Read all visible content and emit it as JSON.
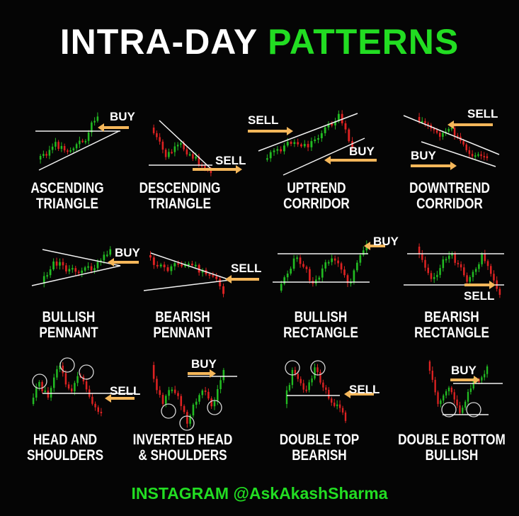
{
  "title": {
    "part1": "INTRA-DAY",
    "part2": "PATTERNS"
  },
  "colors": {
    "accent": "#22dd22",
    "bull": "#22bb22",
    "bear": "#dd2222",
    "arrow": "#f5b75a",
    "text": "#ffffff"
  },
  "patterns": [
    {
      "line1": "ASCENDING",
      "line2": "TRIANGLE",
      "tags": [
        "BUY"
      ]
    },
    {
      "line1": "DESCENDING",
      "line2": "TRIANGLE",
      "tags": [
        "SELL"
      ]
    },
    {
      "line1": "UPTREND",
      "line2": "CORRIDOR",
      "tags": [
        "SELL",
        "BUY"
      ]
    },
    {
      "line1": "DOWNTREND",
      "line2": "CORRIDOR",
      "tags": [
        "SELL",
        "BUY"
      ]
    },
    {
      "line1": "BULLISH",
      "line2": "PENNANT",
      "tags": [
        "BUY"
      ]
    },
    {
      "line1": "BEARISH",
      "line2": "PENNANT",
      "tags": [
        "SELL"
      ]
    },
    {
      "line1": "BULLISH",
      "line2": "RECTANGLE",
      "tags": [
        "BUY"
      ]
    },
    {
      "line1": "BEARISH",
      "line2": "RECTANGLE",
      "tags": [
        "SELL"
      ]
    },
    {
      "line1": "HEAD AND",
      "line2": "SHOULDERS",
      "tags": [
        "SELL"
      ]
    },
    {
      "line1": "INVERTED HEAD",
      "line2": "& SHOULDERS",
      "tags": [
        "BUY"
      ]
    },
    {
      "line1": "DOUBLE TOP",
      "line2": "BEARISH",
      "tags": [
        "SELL"
      ]
    },
    {
      "line1": "DOUBLE BOTTOM",
      "line2": "BULLISH",
      "tags": [
        "BUY"
      ]
    }
  ],
  "footer": "INSTAGRAM @AskAkashSharma"
}
